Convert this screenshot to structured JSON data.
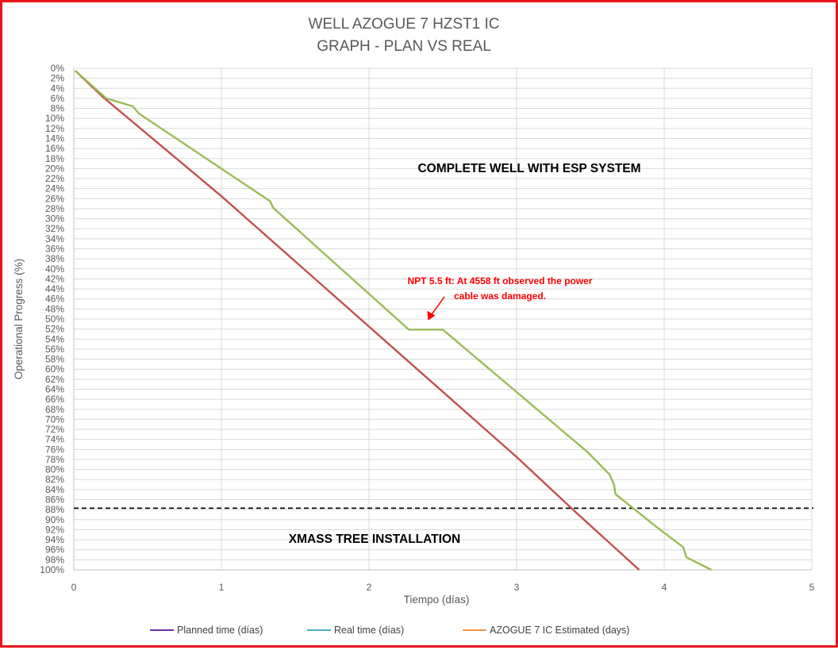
{
  "chart_data": {
    "type": "line",
    "title": [
      "WELL AZOGUE 7 HZST1 IC",
      "GRAPH  - PLAN VS REAL"
    ],
    "xlabel": "Tiempo (días)",
    "ylabel": "Operational Progress (%)",
    "xlim": [
      0,
      5
    ],
    "ylim": [
      0,
      100
    ],
    "y_reversed": true,
    "x_ticks": [
      "0",
      "1",
      "2",
      "3",
      "4",
      "5"
    ],
    "y_ticks": [
      "0%",
      "2%",
      "4%",
      "6%",
      "8%",
      "10%",
      "12%",
      "14%",
      "16%",
      "18%",
      "20%",
      "22%",
      "24%",
      "26%",
      "28%",
      "30%",
      "32%",
      "34%",
      "36%",
      "38%",
      "40%",
      "42%",
      "44%",
      "46%",
      "48%",
      "50%",
      "52%",
      "54%",
      "56%",
      "58%",
      "60%",
      "62%",
      "64%",
      "66%",
      "68%",
      "70%",
      "72%",
      "74%",
      "76%",
      "78%",
      "80%",
      "82%",
      "84%",
      "86%",
      "88%",
      "90%",
      "92%",
      "94%",
      "96%",
      "98%",
      "100%"
    ],
    "grid": true,
    "legend_position": "bottom",
    "series": [
      {
        "name": "Planned time (días)",
        "color": "#7030a0",
        "line_color": "#c0504d",
        "x": [
          0.01,
          0.2,
          1.0,
          2.0,
          3.0,
          3.4,
          3.83
        ],
        "y": [
          0.5,
          5.8,
          25.5,
          51.5,
          77.5,
          88.5,
          100
        ]
      },
      {
        "name": "Real time (días)",
        "color": "#4bacc6",
        "line_color": "#9bbb59",
        "x": [
          0.01,
          0.22,
          0.4,
          0.44,
          1.33,
          1.35,
          2.27,
          2.5,
          3.48,
          3.63,
          3.66,
          3.67,
          3.81,
          3.95,
          4.13,
          4.15,
          4.32
        ],
        "y": [
          0.5,
          6.0,
          7.6,
          9.0,
          26.5,
          27.8,
          52.1,
          52.1,
          76.5,
          81.0,
          83.0,
          84.9,
          88.2,
          91.5,
          95.5,
          97.5,
          100
        ]
      },
      {
        "name": "AZOGUE 7 IC Estimated (days)",
        "color": "#f79646",
        "x": [],
        "y": []
      }
    ],
    "reference_line": {
      "y": 87.7,
      "style": "dashed",
      "color": "#000000"
    },
    "annotations": [
      {
        "text": "COMPLETE WELL WITH ESP SYSTEM",
        "color": "#000000"
      },
      {
        "text": "XMASS TREE INSTALLATION",
        "color": "#000000"
      },
      {
        "lines": [
          "NPT 5.5 ft: At 4558 ft observed the power",
          "cable was damaged."
        ],
        "color": "#ff0000",
        "arrow_to": {
          "x": 2.4,
          "y": 51.2
        }
      }
    ]
  }
}
